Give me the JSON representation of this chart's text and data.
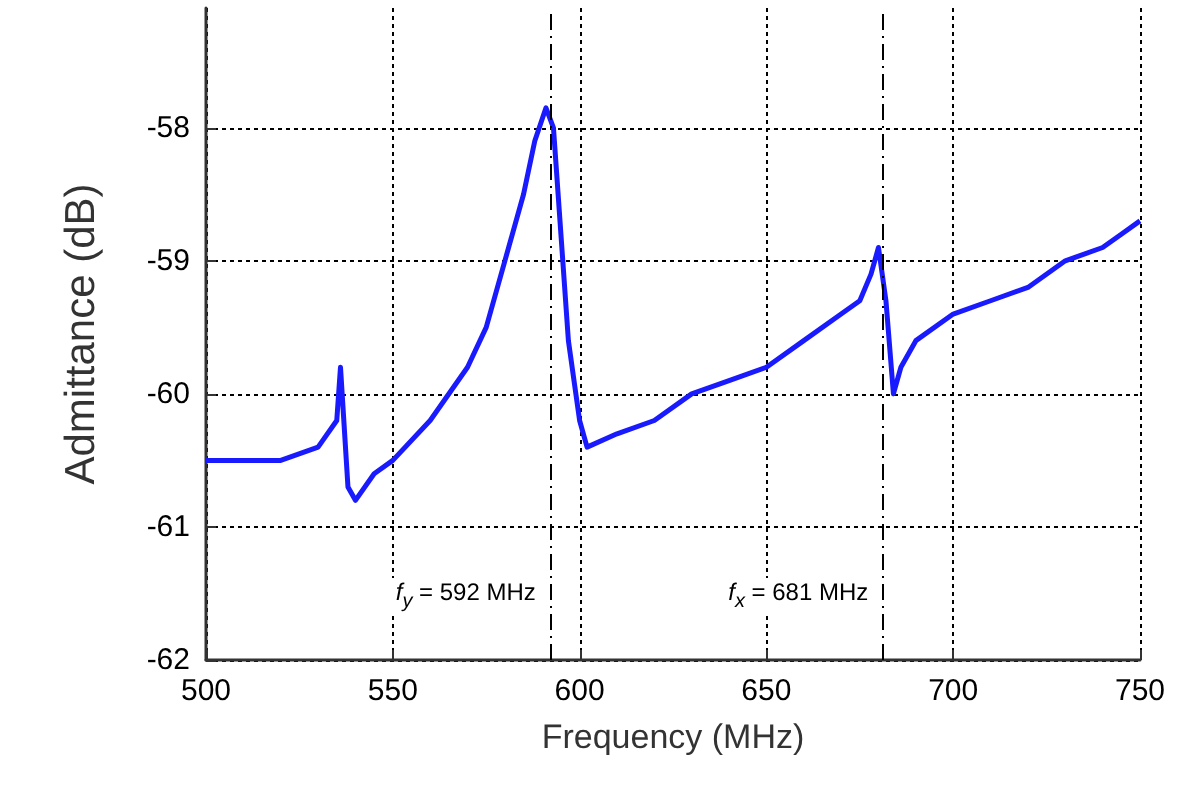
{
  "chart_data": {
    "type": "line",
    "xlabel": "Frequency (MHz)",
    "ylabel": "Admittance (dB)",
    "xlim": [
      500,
      750
    ],
    "xticks": [
      500,
      550,
      600,
      650,
      700,
      750
    ],
    "ylim": [
      -62,
      -57.1
    ],
    "yticks": [
      -62,
      -61,
      -60,
      -59,
      -58
    ],
    "grid": true,
    "marker": "none",
    "line_style": "solid",
    "series": [
      {
        "color": "#1a1aff",
        "x": [
          500,
          510,
          520,
          530,
          535,
          536,
          538,
          540,
          545,
          550,
          560,
          570,
          575,
          580,
          585,
          588,
          591,
          593,
          595,
          597,
          600,
          602,
          610,
          620,
          630,
          640,
          650,
          660,
          670,
          675,
          678,
          680,
          682,
          684,
          686,
          690,
          700,
          710,
          720,
          730,
          740,
          745,
          750
        ],
        "values": [
          -60.5,
          -60.5,
          -60.5,
          -60.4,
          -60.2,
          -59.8,
          -60.7,
          -60.8,
          -60.6,
          -60.5,
          -60.2,
          -59.8,
          -59.5,
          -59.0,
          -58.5,
          -58.1,
          -57.85,
          -58.0,
          -58.8,
          -59.6,
          -60.2,
          -60.4,
          -60.3,
          -60.2,
          -60.0,
          -59.9,
          -59.8,
          -59.6,
          -59.4,
          -59.3,
          -59.1,
          -58.9,
          -59.3,
          -60.0,
          -59.8,
          -59.6,
          -59.4,
          -59.3,
          -59.2,
          -59.0,
          -58.9,
          -58.8,
          -58.7
        ]
      }
    ],
    "ref_lines": [
      {
        "axis": "x",
        "value": 592,
        "label": "f$_{y}$ = 592 MHz",
        "line_style": "dashdot"
      },
      {
        "axis": "x",
        "value": 681,
        "label": "f$_{x}$ = 681 MHz",
        "line_style": "dashdot"
      }
    ]
  }
}
